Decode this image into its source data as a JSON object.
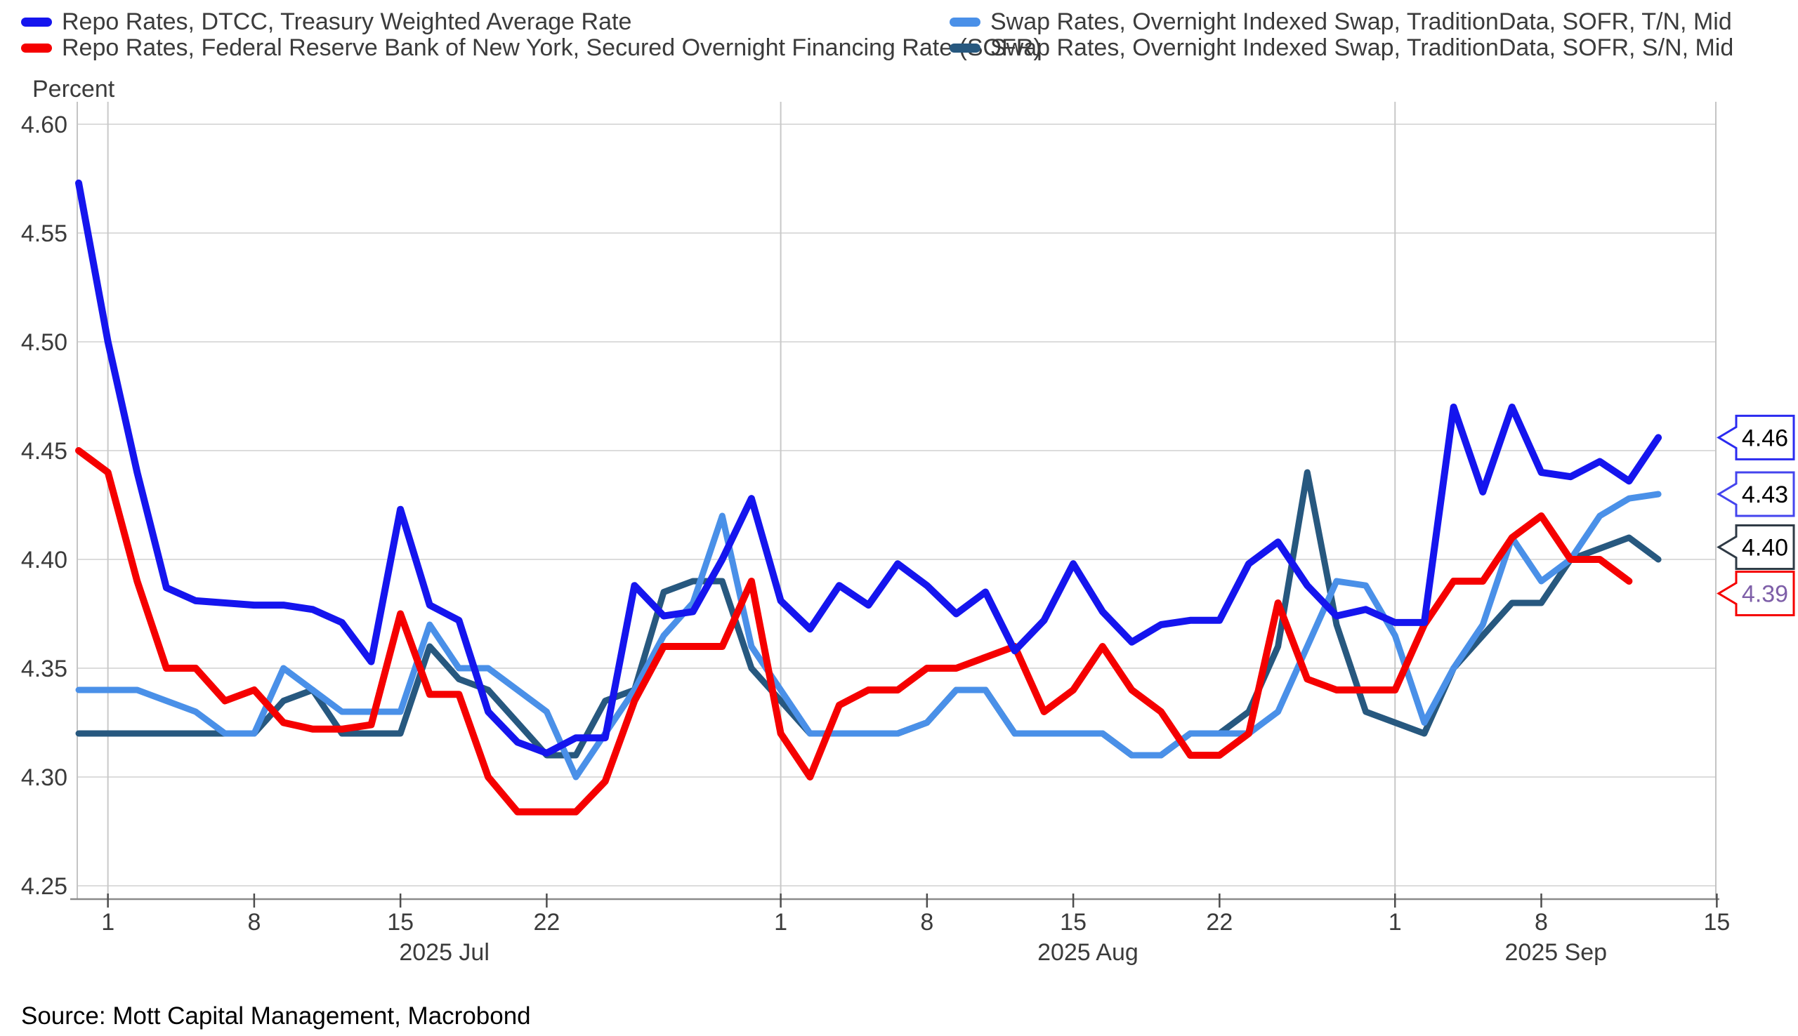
{
  "legend": {
    "items": [
      {
        "label": "Repo Rates, DTCC, Treasury Weighted Average Rate",
        "color": "#1515EE",
        "col": 0,
        "row": 0
      },
      {
        "label": "Repo Rates, Federal Reserve Bank of New York, Secured Overnight Financing Rate (SOFR)",
        "color": "#F50000",
        "col": 0,
        "row": 1
      },
      {
        "label": "Swap Rates, Overnight Indexed Swap, TraditionData, SOFR, T/N, Mid",
        "color": "#4A90E8",
        "col": 1,
        "row": 0
      },
      {
        "label": "Swap Rates, Overnight Indexed Swap, TraditionData, SOFR, S/N, Mid",
        "color": "#27587F",
        "col": 1,
        "row": 1
      }
    ]
  },
  "y_axis": {
    "title": "Percent",
    "ticks": [
      {
        "v": 4.6,
        "label": "4.60"
      },
      {
        "v": 4.55,
        "label": "4.55"
      },
      {
        "v": 4.5,
        "label": "4.50"
      },
      {
        "v": 4.45,
        "label": "4.45"
      },
      {
        "v": 4.4,
        "label": "4.40"
      },
      {
        "v": 4.35,
        "label": "4.35"
      },
      {
        "v": 4.3,
        "label": "4.30"
      },
      {
        "v": 4.25,
        "label": "4.25"
      }
    ]
  },
  "x_axis": {
    "ticks": [
      {
        "i": 1,
        "label": "1"
      },
      {
        "i": 6,
        "label": "8"
      },
      {
        "i": 11,
        "label": "15"
      },
      {
        "i": 16,
        "label": "22"
      },
      {
        "i": 24,
        "label": "1"
      },
      {
        "i": 29,
        "label": "8"
      },
      {
        "i": 34,
        "label": "15"
      },
      {
        "i": 39,
        "label": "22"
      },
      {
        "i": 45,
        "label": "1"
      },
      {
        "i": 50,
        "label": "8"
      },
      {
        "i": 56,
        "label": "15"
      }
    ],
    "month_gridline_indices": [
      1,
      24,
      45
    ],
    "months": [
      {
        "label": "2025 Jul",
        "from": 1,
        "to": 24
      },
      {
        "label": "2025 Aug",
        "from": 24,
        "to": 45
      },
      {
        "label": "2025 Sep",
        "from": 45,
        "to": 56
      }
    ]
  },
  "callouts": [
    {
      "series": 0,
      "label": "4.46",
      "border": "#2B2BF0",
      "text": "#000000"
    },
    {
      "series": 2,
      "label": "4.43",
      "border": "#4444EE",
      "text": "#000000"
    },
    {
      "series": 3,
      "label": "4.40",
      "border": "#2F3A45",
      "text": "#000000"
    },
    {
      "series": 1,
      "label": "4.39",
      "border": "#F50000",
      "text": "#7E5FA8"
    }
  ],
  "source": "Source: Mott Capital Management, Macrobond",
  "chart_data": {
    "type": "line",
    "title": "",
    "ylabel": "Percent",
    "ylim": [
      4.25,
      4.6
    ],
    "grid": true,
    "legend_position": "top",
    "x": [
      "Jun 30",
      "Jul 1",
      "Jul 2",
      "Jul 3",
      "Jul 4",
      "Jul 7",
      "Jul 8",
      "Jul 9",
      "Jul 10",
      "Jul 11",
      "Jul 14",
      "Jul 15",
      "Jul 16",
      "Jul 17",
      "Jul 18",
      "Jul 21",
      "Jul 22",
      "Jul 23",
      "Jul 24",
      "Jul 25",
      "Jul 28",
      "Jul 29",
      "Jul 30",
      "Jul 31",
      "Aug 1",
      "Aug 4",
      "Aug 5",
      "Aug 6",
      "Aug 7",
      "Aug 8",
      "Aug 11",
      "Aug 12",
      "Aug 13",
      "Aug 14",
      "Aug 15",
      "Aug 18",
      "Aug 19",
      "Aug 20",
      "Aug 21",
      "Aug 22",
      "Aug 25",
      "Aug 26",
      "Aug 27",
      "Aug 28",
      "Aug 29",
      "Sep 1",
      "Sep 2",
      "Sep 3",
      "Sep 4",
      "Sep 5",
      "Sep 8",
      "Sep 9",
      "Sep 10",
      "Sep 11",
      "Sep 12"
    ],
    "series": [
      {
        "name": "Repo Rates, DTCC, Treasury Weighted Average Rate",
        "color": "#1515EE",
        "width": 10,
        "end_label": "4.46",
        "values": [
          4.573,
          4.5,
          4.44,
          4.387,
          4.381,
          4.38,
          4.379,
          4.379,
          4.377,
          4.371,
          4.353,
          4.423,
          4.379,
          4.372,
          4.33,
          4.316,
          4.311,
          4.318,
          4.318,
          4.388,
          4.374,
          4.376,
          4.4,
          4.428,
          4.381,
          4.368,
          4.388,
          4.379,
          4.398,
          4.388,
          4.375,
          4.385,
          4.358,
          4.372,
          4.398,
          4.376,
          4.362,
          4.37,
          4.372,
          4.372,
          4.398,
          4.408,
          4.388,
          4.374,
          4.377,
          4.371,
          4.371,
          4.47,
          4.431,
          4.47,
          4.44,
          4.438,
          4.445,
          4.436,
          4.456
        ]
      },
      {
        "name": "Repo Rates, Federal Reserve Bank of New York, Secured Overnight Financing Rate (SOFR)",
        "color": "#F50000",
        "width": 10,
        "end_label": "4.39",
        "values": [
          4.45,
          4.44,
          4.39,
          4.35,
          4.35,
          4.335,
          4.34,
          4.325,
          4.322,
          4.322,
          4.324,
          4.375,
          4.338,
          4.338,
          4.3,
          4.284,
          4.284,
          4.284,
          4.298,
          4.335,
          4.36,
          4.36,
          4.36,
          4.39,
          4.32,
          4.3,
          4.333,
          4.34,
          4.34,
          4.35,
          4.35,
          4.355,
          4.36,
          4.33,
          4.34,
          4.36,
          4.34,
          4.33,
          4.31,
          4.31,
          4.32,
          4.38,
          4.345,
          4.34,
          4.34,
          4.34,
          4.37,
          4.39,
          4.39,
          4.41,
          4.42,
          4.4,
          4.4,
          4.39,
          null
        ]
      },
      {
        "name": "Swap Rates, Overnight Indexed Swap, TraditionData, SOFR, T/N, Mid",
        "color": "#4A90E8",
        "width": 9,
        "end_label": "4.43",
        "values": [
          4.34,
          4.34,
          4.34,
          4.335,
          4.33,
          4.32,
          4.32,
          4.35,
          4.34,
          4.33,
          4.33,
          4.33,
          4.37,
          4.35,
          4.35,
          4.34,
          4.33,
          4.3,
          4.32,
          4.34,
          4.365,
          4.38,
          4.42,
          4.36,
          4.34,
          4.32,
          4.32,
          4.32,
          4.32,
          4.325,
          4.34,
          4.34,
          4.32,
          4.32,
          4.32,
          4.32,
          4.31,
          4.31,
          4.32,
          4.32,
          4.32,
          4.33,
          4.36,
          4.39,
          4.388,
          4.365,
          4.325,
          4.35,
          4.37,
          4.41,
          4.39,
          4.4,
          4.42,
          4.428,
          4.43
        ]
      },
      {
        "name": "Swap Rates, Overnight Indexed Swap, TraditionData, SOFR, S/N, Mid",
        "color": "#27587F",
        "width": 9,
        "end_label": "4.40",
        "values": [
          4.32,
          4.32,
          4.32,
          4.32,
          4.32,
          4.32,
          4.32,
          4.335,
          4.34,
          4.32,
          4.32,
          4.32,
          4.36,
          4.345,
          4.34,
          4.325,
          4.31,
          4.31,
          4.335,
          4.34,
          4.385,
          4.39,
          4.39,
          4.35,
          4.335,
          4.32,
          4.32,
          4.32,
          4.32,
          4.325,
          4.34,
          4.34,
          4.32,
          4.32,
          4.32,
          4.32,
          4.31,
          4.31,
          4.32,
          4.32,
          4.33,
          4.36,
          4.44,
          4.37,
          4.33,
          4.325,
          4.32,
          4.35,
          4.365,
          4.38,
          4.38,
          4.4,
          4.405,
          4.41,
          4.4
        ]
      }
    ]
  }
}
